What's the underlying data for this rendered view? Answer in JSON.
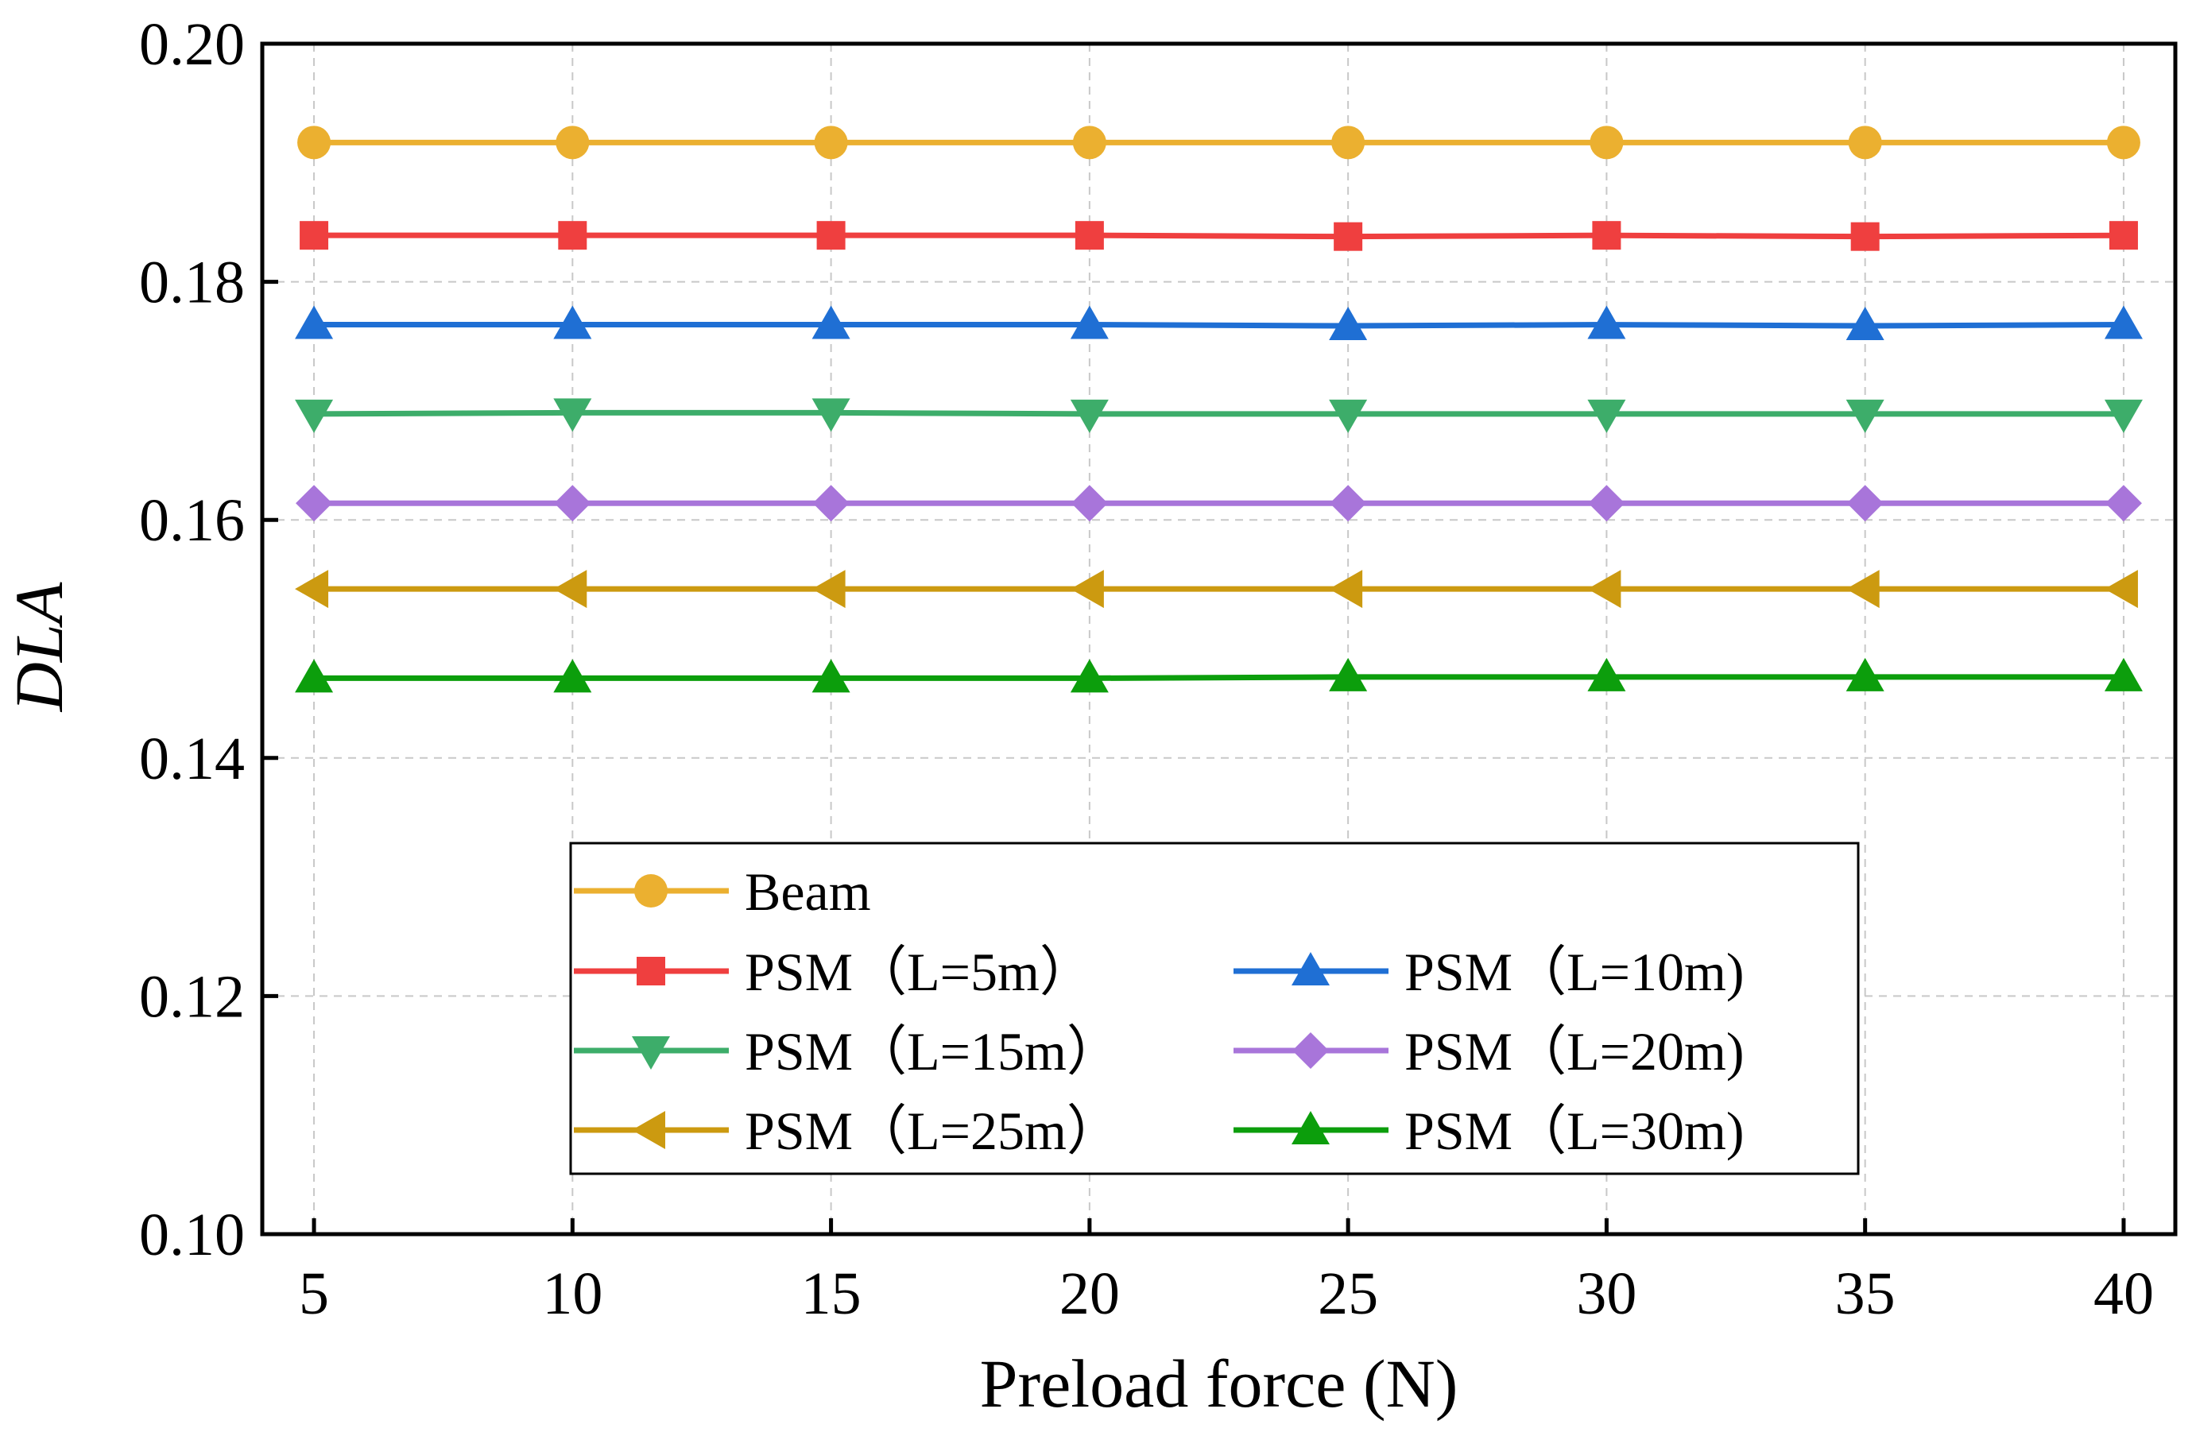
{
  "chart_data": {
    "type": "line",
    "title": "",
    "xlabel": "Preload force (N)",
    "ylabel": "DLA",
    "x": [
      5,
      10,
      15,
      20,
      25,
      30,
      35,
      40
    ],
    "xlim": [
      4,
      41
    ],
    "ylim": [
      0.1,
      0.2
    ],
    "xticks": [
      5,
      10,
      15,
      20,
      25,
      30,
      35,
      40
    ],
    "xtick_labels": [
      "5",
      "10",
      "15",
      "20",
      "25",
      "30",
      "35",
      "40"
    ],
    "yticks": [
      0.1,
      0.12,
      0.14,
      0.16,
      0.18,
      0.2
    ],
    "ytick_labels": [
      "0.10",
      "0.12",
      "0.14",
      "0.16",
      "0.18",
      "0.20"
    ],
    "grid": true,
    "legend_position": "bottom-center",
    "series": [
      {
        "name": "Beam",
        "label": "Beam",
        "color": "#EBB030",
        "marker": "circle",
        "values": [
          0.1917,
          0.1917,
          0.1917,
          0.1917,
          0.1917,
          0.1917,
          0.1917,
          0.1917
        ]
      },
      {
        "name": "PSM (L=5m)",
        "label": "PSM（L=5m）",
        "color": "#EF3F3F",
        "marker": "square",
        "values": [
          0.1839,
          0.1839,
          0.1839,
          0.1839,
          0.1838,
          0.1839,
          0.1838,
          0.1839
        ]
      },
      {
        "name": "PSM (L=10m)",
        "label": "PSM（L=10m)",
        "color": "#1F6FD4",
        "marker": "triangle-up",
        "values": [
          0.1764,
          0.1764,
          0.1764,
          0.1764,
          0.1763,
          0.1764,
          0.1763,
          0.1764
        ]
      },
      {
        "name": "PSM (L=15m)",
        "label": "PSM（L=15m）",
        "color": "#3DAD6A",
        "marker": "triangle-down",
        "values": [
          0.1689,
          0.169,
          0.169,
          0.1689,
          0.1689,
          0.1689,
          0.1689,
          0.1689
        ]
      },
      {
        "name": "PSM (L=20m)",
        "label": "PSM（L=20m)",
        "color": "#A875DA",
        "marker": "diamond",
        "values": [
          0.1614,
          0.1614,
          0.1614,
          0.1614,
          0.1614,
          0.1614,
          0.1614,
          0.1614
        ]
      },
      {
        "name": "PSM (L=25m)",
        "label": "PSM（L=25m）",
        "color": "#CC9A10",
        "marker": "triangle-left",
        "values": [
          0.1542,
          0.1542,
          0.1542,
          0.1542,
          0.1542,
          0.1542,
          0.1542,
          0.1542
        ]
      },
      {
        "name": "PSM (L=30m)",
        "label": "PSM（L=30m)",
        "color": "#0C9E0C",
        "marker": "triangle-up",
        "values": [
          0.1467,
          0.1467,
          0.1467,
          0.1467,
          0.1468,
          0.1468,
          0.1468,
          0.1468
        ]
      }
    ]
  }
}
